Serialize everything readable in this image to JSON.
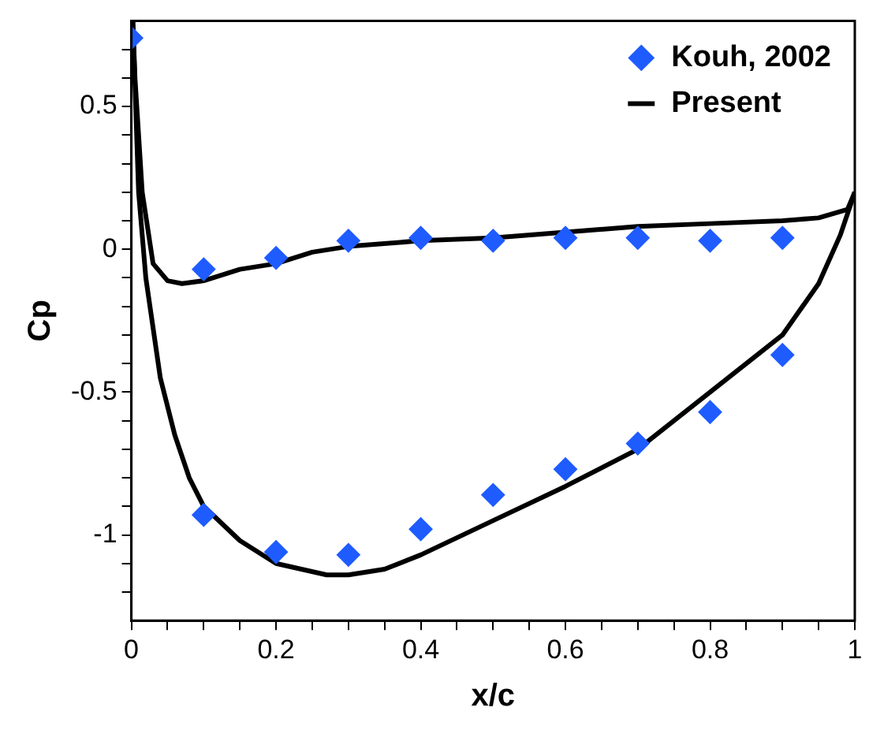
{
  "chart_data": {
    "type": "scatter",
    "xlabel": "x/c",
    "ylabel": "Cp",
    "xlim": [
      0,
      1
    ],
    "ylim": [
      -1.3,
      0.8
    ],
    "xticks": [
      0,
      {
        "value": 0.05,
        "label": null
      },
      {
        "value": 0.1,
        "label": null
      },
      {
        "value": 0.15,
        "label": null
      },
      0.2,
      {
        "value": 0.25,
        "label": null
      },
      {
        "value": 0.3,
        "label": null
      },
      {
        "value": 0.35,
        "label": null
      },
      0.4,
      {
        "value": 0.45,
        "label": null
      },
      {
        "value": 0.5,
        "label": null
      },
      {
        "value": 0.55,
        "label": null
      },
      0.6,
      {
        "value": 0.65,
        "label": null
      },
      {
        "value": 0.7,
        "label": null
      },
      {
        "value": 0.75,
        "label": null
      },
      0.8,
      {
        "value": 0.85,
        "label": null
      },
      {
        "value": 0.9,
        "label": null
      },
      {
        "value": 0.95,
        "label": null
      },
      1
    ],
    "yticks": [
      {
        "value": -1.2,
        "label": null
      },
      {
        "value": -1.1,
        "label": null
      },
      -1,
      {
        "value": -0.9,
        "label": null
      },
      {
        "value": -0.8,
        "label": null
      },
      {
        "value": -0.7,
        "label": null
      },
      {
        "value": -0.6,
        "label": null
      },
      -0.5,
      {
        "value": -0.4,
        "label": null
      },
      {
        "value": -0.3,
        "label": null
      },
      {
        "value": -0.2,
        "label": null
      },
      {
        "value": -0.1,
        "label": null
      },
      0,
      {
        "value": 0.1,
        "label": null
      },
      {
        "value": 0.2,
        "label": null
      },
      {
        "value": 0.3,
        "label": null
      },
      {
        "value": 0.4,
        "label": null
      },
      0.5,
      {
        "value": 0.6,
        "label": null
      },
      {
        "value": 0.7,
        "label": null
      }
    ],
    "grid": false,
    "legend": "top right",
    "marker": "diamond",
    "series": [
      {
        "name": "Kouh, 2002",
        "color": "#1f5cff",
        "x": [
          0,
          0.1,
          0.2,
          0.3,
          0.4,
          0.5,
          0.6,
          0.7,
          0.8,
          0.9,
          0.1,
          0.2,
          0.3,
          0.4,
          0.5,
          0.6,
          0.7,
          0.8,
          0.9
        ],
        "values": [
          0.74,
          -0.07,
          -0.03,
          0.03,
          0.04,
          0.03,
          0.04,
          0.04,
          0.03,
          0.04,
          -0.93,
          -1.06,
          -1.07,
          -0.98,
          -0.86,
          -0.77,
          -0.68,
          -0.57,
          -0.37
        ]
      },
      {
        "name": "Present",
        "type": "line",
        "marker": "none",
        "line_style": "solid",
        "color": "#000000",
        "x": [
          0.002,
          0.005,
          0.015,
          0.03,
          0.05,
          0.07,
          0.1,
          0.15,
          0.2,
          0.25,
          0.3,
          0.4,
          0.5,
          0.6,
          0.7,
          0.8,
          0.9,
          0.95,
          0.99,
          1
        ],
        "values": [
          0.8,
          0.6,
          0.2,
          -0.05,
          -0.11,
          -0.12,
          -0.11,
          -0.07,
          -0.05,
          -0.01,
          0.01,
          0.03,
          0.04,
          0.06,
          0.08,
          0.09,
          0.1,
          0.11,
          0.14,
          0.2
        ]
      },
      {
        "type": "line",
        "marker": "none",
        "line_style": "solid",
        "color": "#000000",
        "x": [
          0.002,
          0.01,
          0.02,
          0.04,
          0.06,
          0.08,
          0.1,
          0.15,
          0.2,
          0.27,
          0.3,
          0.35,
          0.4,
          0.5,
          0.6,
          0.7,
          0.8,
          0.9,
          0.95,
          0.98,
          1
        ],
        "values": [
          0.8,
          0.2,
          -0.1,
          -0.45,
          -0.65,
          -0.8,
          -0.9,
          -1.02,
          -1.1,
          -1.14,
          -1.14,
          -1.12,
          -1.07,
          -0.95,
          -0.83,
          -0.7,
          -0.5,
          -0.3,
          -0.12,
          0.05,
          0.2
        ]
      }
    ]
  }
}
